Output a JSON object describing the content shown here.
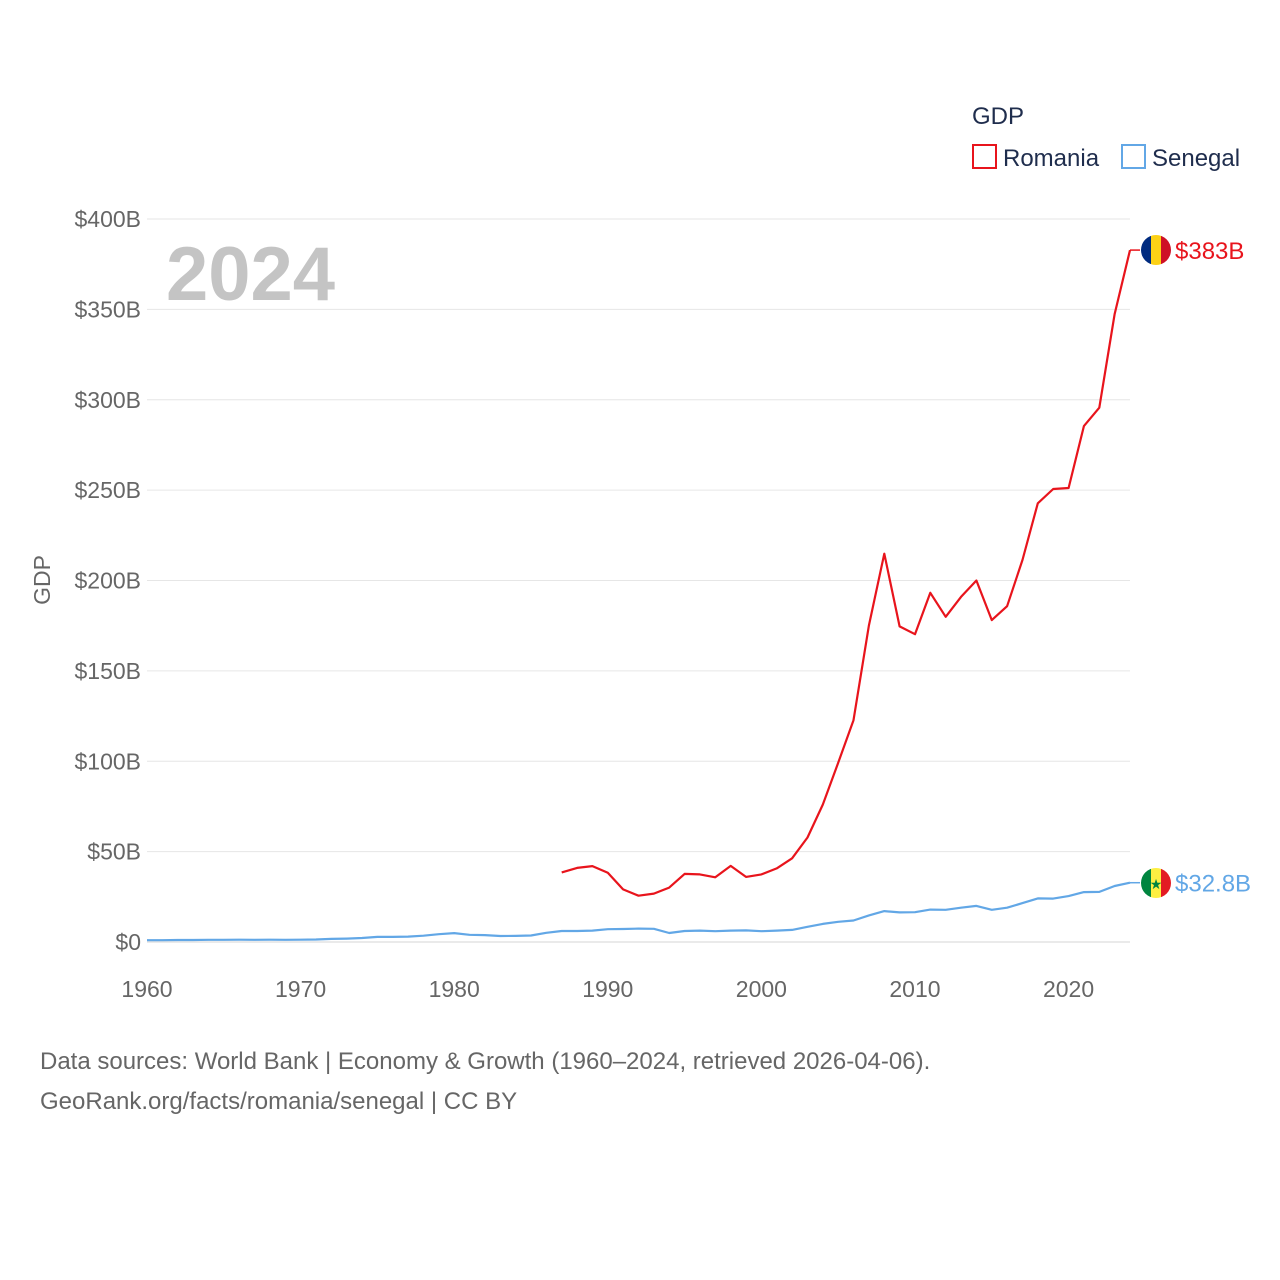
{
  "chart_data": {
    "type": "line",
    "title": "",
    "year_label": "2024",
    "ylabel": "GDP",
    "xlabel": "",
    "xlim": [
      1960,
      2024
    ],
    "ylim": [
      0,
      400
    ],
    "y_ticks": [
      0,
      50,
      100,
      150,
      200,
      250,
      300,
      350,
      400
    ],
    "y_tick_labels": [
      "$0",
      "$50B",
      "$100B",
      "$150B",
      "$200B",
      "$250B",
      "$300B",
      "$350B",
      "$400B"
    ],
    "x_ticks": [
      1960,
      1970,
      1980,
      1990,
      2000,
      2010,
      2020
    ],
    "x_tick_labels": [
      "1960",
      "1970",
      "1980",
      "1990",
      "2000",
      "2010",
      "2020"
    ],
    "legend": {
      "title": "GDP",
      "position": "top-right",
      "entries": [
        "Romania",
        "Senegal"
      ]
    },
    "series": [
      {
        "name": "Romania",
        "color": "#e8141c",
        "end_label": "$383B",
        "flag": "romania-flag",
        "x": [
          1987,
          1988,
          1989,
          1990,
          1991,
          1992,
          1993,
          1994,
          1995,
          1996,
          1997,
          1998,
          1999,
          2000,
          2001,
          2002,
          2003,
          2004,
          2005,
          2006,
          2007,
          2008,
          2009,
          2010,
          2011,
          2012,
          2013,
          2014,
          2015,
          2016,
          2017,
          2018,
          2019,
          2020,
          2021,
          2022,
          2023,
          2024
        ],
        "values": [
          38.5,
          41,
          42,
          38.3,
          29.1,
          25.6,
          26.8,
          30.1,
          37.7,
          37.4,
          35.8,
          42.1,
          36,
          37.4,
          40.7,
          46.3,
          57.8,
          76,
          99.2,
          122.7,
          175.1,
          214.8,
          174.6,
          170.3,
          193.2,
          179.9,
          190.9,
          200,
          178.1,
          185.8,
          211.4,
          242.7,
          250.6,
          251.2,
          285.4,
          295.6,
          347.3,
          382.8
        ]
      },
      {
        "name": "Senegal",
        "color": "#62a7e6",
        "end_label": "$32.8B",
        "flag": "senegal-flag",
        "x": [
          1960,
          1961,
          1962,
          1963,
          1964,
          1965,
          1966,
          1967,
          1968,
          1969,
          1970,
          1971,
          1972,
          1973,
          1974,
          1975,
          1976,
          1977,
          1978,
          1979,
          1980,
          1981,
          1982,
          1983,
          1984,
          1985,
          1986,
          1987,
          1988,
          1989,
          1990,
          1991,
          1992,
          1993,
          1994,
          1995,
          1996,
          1997,
          1998,
          1999,
          2000,
          2001,
          2002,
          2003,
          2004,
          2005,
          2006,
          2007,
          2008,
          2009,
          2010,
          2011,
          2012,
          2013,
          2014,
          2015,
          2016,
          2017,
          2018,
          2019,
          2020,
          2021,
          2022,
          2023,
          2024
        ],
        "values": [
          1.0,
          1.0,
          1.1,
          1.1,
          1.2,
          1.2,
          1.3,
          1.2,
          1.3,
          1.2,
          1.3,
          1.4,
          1.7,
          1.9,
          2.2,
          2.8,
          2.8,
          3,
          3.5,
          4.3,
          4.9,
          4,
          3.8,
          3.3,
          3.4,
          3.6,
          5.1,
          6.1,
          6.1,
          6.3,
          7.1,
          7.2,
          7.4,
          7.3,
          5,
          6.1,
          6.3,
          6.0,
          6.3,
          6.4,
          6.0,
          6.3,
          6.7,
          8.4,
          10,
          11.2,
          11.9,
          14.7,
          17.1,
          16.4,
          16.5,
          17.9,
          17.8,
          19,
          20,
          17.8,
          19,
          21.5,
          24.1,
          24,
          25.4,
          27.6,
          27.7,
          31,
          32.8
        ]
      }
    ]
  },
  "footer": {
    "line1": "Data sources: World Bank | Economy & Growth (1960–2024, retrieved 2026-04-06).",
    "line2": "GeoRank.org/facts/romania/senegal | CC BY"
  }
}
